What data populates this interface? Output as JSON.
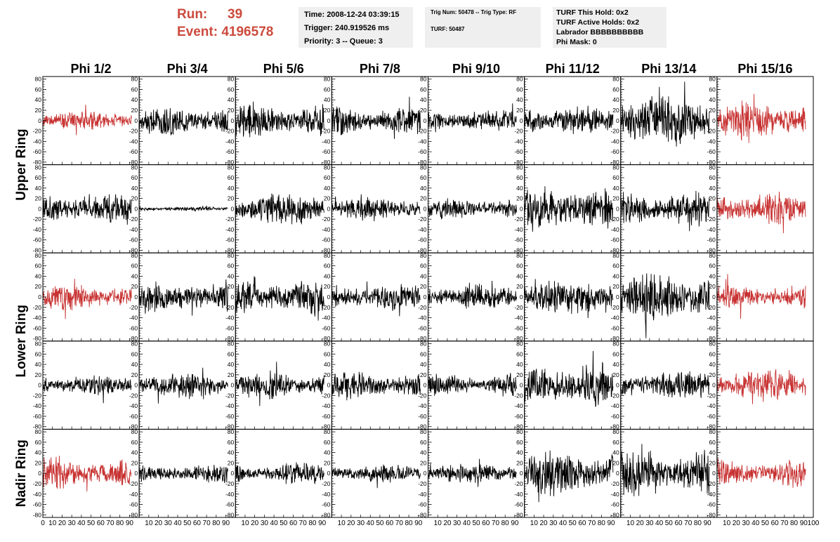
{
  "header": {
    "run_label": "Run:",
    "run_value": "39",
    "event_label": "Event:",
    "event_value": "4196578",
    "time": "Time: 2008-12-24 03:39:15",
    "trigger": "Trigger: 240.919526 ms",
    "priority": "Priority: 3 -- Queue: 3",
    "trig_num": "Trig Num: 50478 -- Trig Type: RF",
    "turf": "TURF: 50487",
    "turf_hold": "TURF This Hold: 0x2",
    "turf_active": "TURF Active Holds: 0x2",
    "labrador": "Labrador BBBBBBBBBB",
    "phi_mask": "Phi Mask: 0"
  },
  "colors": {
    "normal": "#000000",
    "highlight": "#c83232",
    "run_text": "#cc4a3d",
    "box_bg": "#efefef"
  },
  "chart_data": {
    "type": "line",
    "columns": [
      "Phi 1/2",
      "Phi 3/4",
      "Phi 5/6",
      "Phi 7/8",
      "Phi 9/10",
      "Phi 11/12",
      "Phi 13/14",
      "Phi 15/16"
    ],
    "ring_labels": [
      {
        "text": "Upper Ring",
        "rows": [
          0,
          1
        ]
      },
      {
        "text": "Lower Ring",
        "rows": [
          2,
          3
        ]
      },
      {
        "text": "Nadir Ring",
        "rows": [
          4
        ]
      }
    ],
    "xlim": [
      0,
      100
    ],
    "ylim": [
      -85,
      85
    ],
    "y_ticks": [
      -80,
      -60,
      -40,
      -20,
      0,
      20,
      40,
      60,
      80
    ],
    "x_ticks": [
      0,
      10,
      20,
      30,
      40,
      50,
      60,
      70,
      80,
      90,
      100
    ],
    "samples_per_trace": 260,
    "rows": [
      [
        {
          "amp": 11,
          "red": true,
          "seed": 11
        },
        {
          "amp": 16,
          "red": false,
          "seed": 12
        },
        {
          "amp": 19,
          "red": false,
          "seed": 13
        },
        {
          "amp": 16,
          "red": false,
          "seed": 14
        },
        {
          "amp": 12,
          "red": false,
          "seed": 15
        },
        {
          "amp": 17,
          "red": false,
          "seed": 16
        },
        {
          "amp": 30,
          "red": false,
          "seed": 17
        },
        {
          "amp": 21,
          "red": true,
          "seed": 18
        }
      ],
      [
        {
          "amp": 16,
          "red": false,
          "seed": 21
        },
        {
          "amp": 2.5,
          "red": false,
          "seed": 22
        },
        {
          "amp": 18,
          "red": false,
          "seed": 23
        },
        {
          "amp": 12,
          "red": false,
          "seed": 24
        },
        {
          "amp": 12,
          "red": false,
          "seed": 25
        },
        {
          "amp": 25,
          "red": false,
          "seed": 26
        },
        {
          "amp": 19,
          "red": false,
          "seed": 27
        },
        {
          "amp": 17,
          "red": true,
          "seed": 28
        }
      ],
      [
        {
          "amp": 14,
          "red": true,
          "seed": 31
        },
        {
          "amp": 18,
          "red": false,
          "seed": 32
        },
        {
          "amp": 20,
          "red": false,
          "seed": 33
        },
        {
          "amp": 15,
          "red": false,
          "seed": 34
        },
        {
          "amp": 13,
          "red": false,
          "seed": 35
        },
        {
          "amp": 20,
          "red": false,
          "seed": 36
        },
        {
          "amp": 27,
          "red": false,
          "seed": 37
        },
        {
          "amp": 13,
          "red": true,
          "seed": 38
        }
      ],
      [
        {
          "amp": 11,
          "red": false,
          "seed": 41
        },
        {
          "amp": 15,
          "red": false,
          "seed": 42
        },
        {
          "amp": 15,
          "red": false,
          "seed": 43
        },
        {
          "amp": 15,
          "red": false,
          "seed": 44
        },
        {
          "amp": 13,
          "red": false,
          "seed": 45
        },
        {
          "amp": 25,
          "red": false,
          "seed": 46
        },
        {
          "amp": 16,
          "red": false,
          "seed": 47
        },
        {
          "amp": 17,
          "red": true,
          "seed": 48
        }
      ],
      [
        {
          "amp": 17,
          "red": true,
          "seed": 51
        },
        {
          "amp": 10,
          "red": false,
          "seed": 52
        },
        {
          "amp": 12,
          "red": false,
          "seed": 53
        },
        {
          "amp": 10,
          "red": false,
          "seed": 54
        },
        {
          "amp": 11,
          "red": false,
          "seed": 55
        },
        {
          "amp": 24,
          "red": false,
          "seed": 56
        },
        {
          "amp": 26,
          "red": false,
          "seed": 57
        },
        {
          "amp": 16,
          "red": true,
          "seed": 58
        }
      ]
    ]
  }
}
